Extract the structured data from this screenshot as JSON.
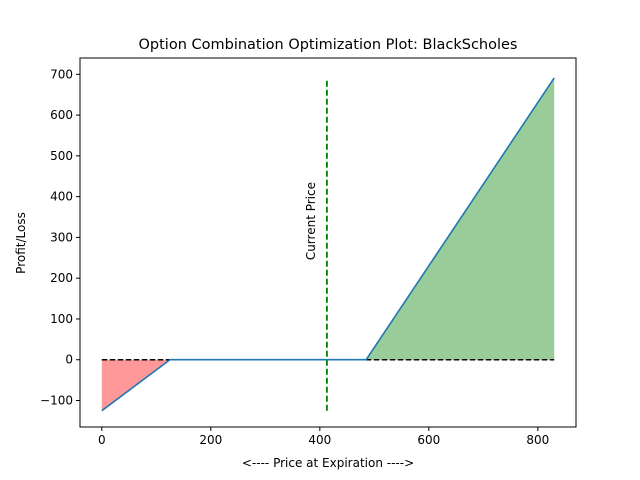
{
  "chart_data": {
    "type": "line",
    "title": "Option Combination Optimization Plot: BlackScholes",
    "xlabel": "<---- Price at Expiration ---->",
    "ylabel": "Profit/Loss",
    "xlim": [
      -40,
      870
    ],
    "ylim": [
      -165,
      740
    ],
    "xticks": [
      0,
      200,
      400,
      600,
      800
    ],
    "yticks": [
      -100,
      0,
      100,
      200,
      300,
      400,
      500,
      600,
      700
    ],
    "grid": false,
    "series": [
      {
        "x": [
          0,
          125,
          485,
          830
        ],
        "y": [
          -125,
          0,
          0,
          691
        ],
        "color": "#1f77b4"
      }
    ],
    "loss_fill": {
      "x": [
        0,
        125
      ],
      "y": [
        -125,
        0
      ],
      "color": "#ff9999"
    },
    "profit_fill": {
      "x": [
        485,
        830
      ],
      "y": [
        0,
        691
      ],
      "color": "#99cc99"
    },
    "zero_line": {
      "x": [
        0,
        830
      ],
      "y": 0,
      "color": "#000000",
      "style": "dashed"
    },
    "current_price_line": {
      "x": 413,
      "y": [
        -125,
        691
      ],
      "color": "#008000",
      "style": "dashed"
    },
    "annotation": {
      "text": "Current Price",
      "x": 385,
      "y": 340,
      "rotation": 90
    }
  }
}
